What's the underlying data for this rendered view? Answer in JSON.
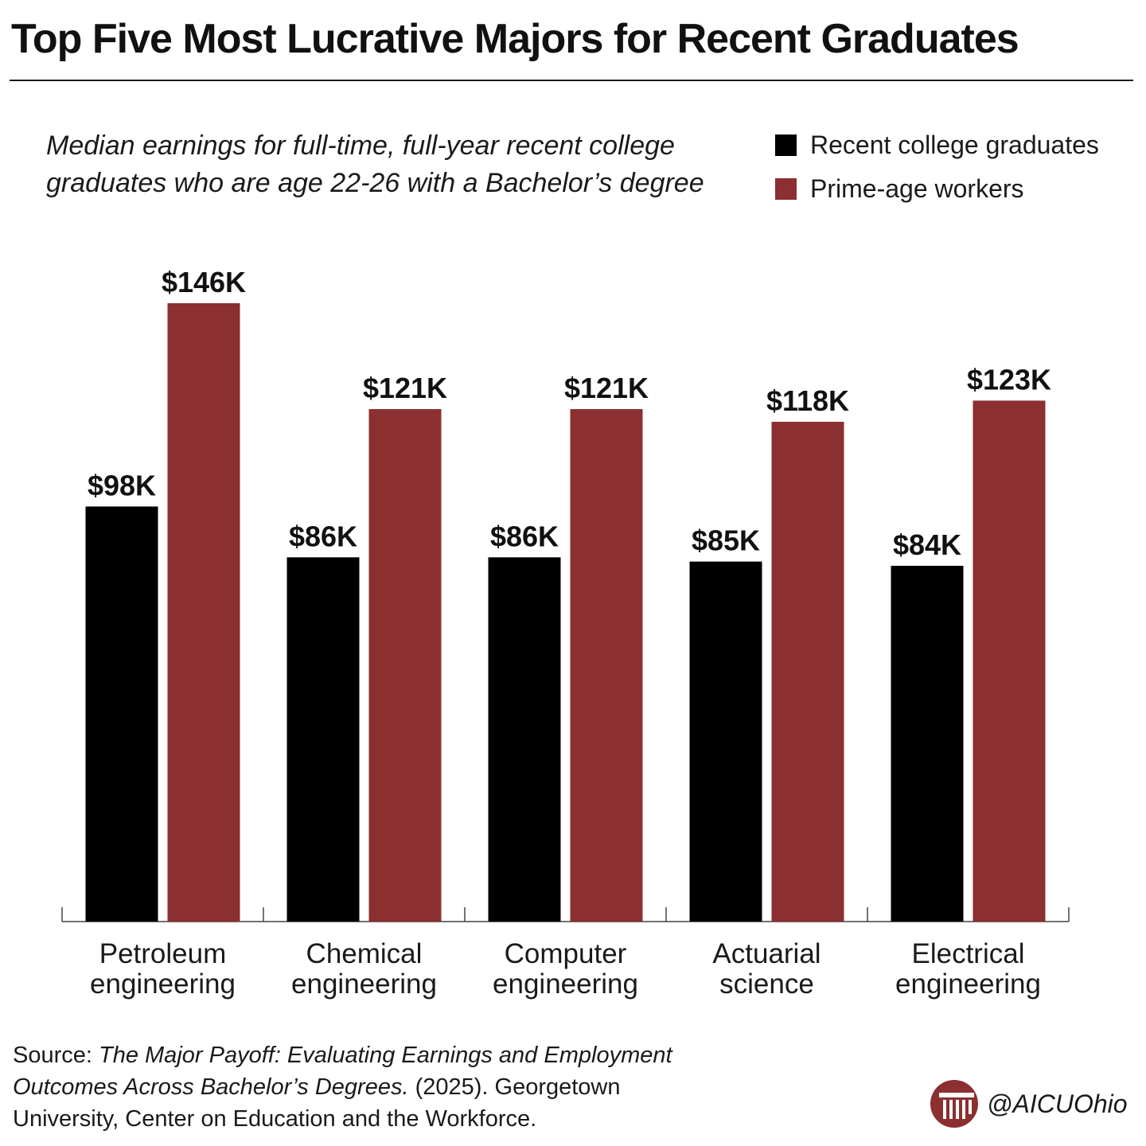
{
  "title": "Top Five Most Lucrative Majors for Recent Graduates",
  "subtitle": "Median earnings for full-time, full-year recent college graduates who are age 22-26 with a Bachelor’s degree",
  "chart_data": {
    "type": "bar",
    "title": "Top Five Most Lucrative Majors for Recent Graduates",
    "subtitle": "Median earnings for full-time, full-year recent college graduates who are age 22-26 with a Bachelor’s degree",
    "categories": [
      [
        "Petroleum",
        "engineering"
      ],
      [
        "Chemical",
        "engineering"
      ],
      [
        "Computer",
        "engineering"
      ],
      [
        "Actuarial",
        "science"
      ],
      [
        "Electrical",
        "engineering"
      ]
    ],
    "series": [
      {
        "name": "Recent college graduates",
        "color": "#000000",
        "values": [
          98,
          86,
          86,
          85,
          84
        ],
        "labels": [
          "$98K",
          "$86K",
          "$86K",
          "$85K",
          "$84K"
        ]
      },
      {
        "name": "Prime-age workers",
        "color": "#8b2f30",
        "values": [
          146,
          121,
          121,
          118,
          123
        ],
        "labels": [
          "$146K",
          "$121K",
          "$121K",
          "$118K",
          "$123K"
        ]
      }
    ],
    "ylim": [
      0,
      146
    ],
    "grid": false,
    "legend_position": "top-right",
    "xlabel": "",
    "ylabel": ""
  },
  "source": {
    "prefix": "Source: ",
    "title": "The Major Payoff: Evaluating Earnings and Employment Outcomes Across Bachelor’s Degrees.",
    "suffix": " (2025). Georgetown University, Center on Education and the Workforce."
  },
  "brand": {
    "handle": "@AICUOhio",
    "icon": "aicu-column-logo-icon",
    "color": "#8b2f30"
  }
}
